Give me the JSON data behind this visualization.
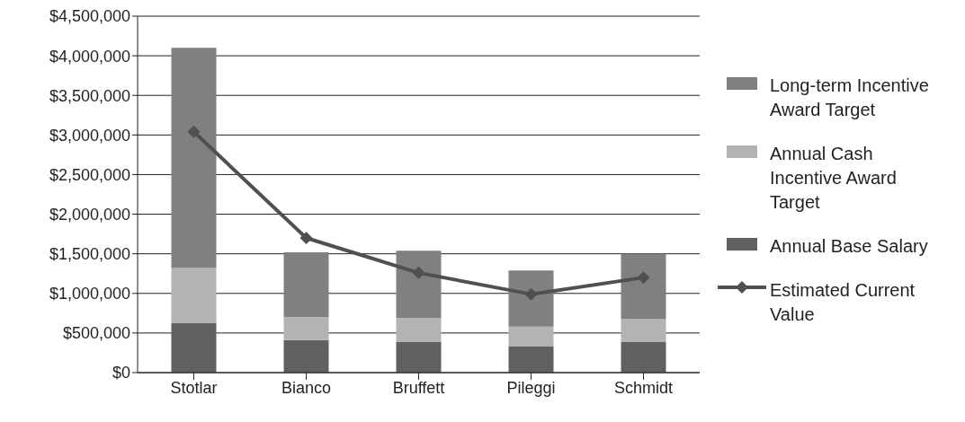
{
  "chart_data": {
    "type": "bar",
    "stacked": true,
    "categories": [
      "Stotlar",
      "Bianco",
      "Bruffett",
      "Pileggi",
      "Schmidt"
    ],
    "series": [
      {
        "name": "Annual Base Salary",
        "color": "#606060",
        "values": [
          630000,
          410000,
          390000,
          330000,
          390000
        ]
      },
      {
        "name": "Annual Cash Incentive Award Target",
        "color": "#b3b3b3",
        "values": [
          690000,
          290000,
          300000,
          250000,
          290000
        ]
      },
      {
        "name": "Long-term Incentive Award Target",
        "color": "#808080",
        "values": [
          2780000,
          820000,
          850000,
          710000,
          820000
        ]
      },
      {
        "name": "Estimated Current Value",
        "type": "line",
        "color": "#505050",
        "marker": "diamond",
        "values": [
          3040000,
          1700000,
          1260000,
          990000,
          1200000
        ]
      }
    ],
    "ylim": [
      0,
      4500000
    ],
    "yticks": [
      {
        "value": 0,
        "label": "$0"
      },
      {
        "value": 500000,
        "label": "$500,000"
      },
      {
        "value": 1000000,
        "label": "$1,000,000"
      },
      {
        "value": 1500000,
        "label": "$1,500,000"
      },
      {
        "value": 2000000,
        "label": "$2,000,000"
      },
      {
        "value": 2500000,
        "label": "$2,500,000"
      },
      {
        "value": 3000000,
        "label": "$3,000,000"
      },
      {
        "value": 3500000,
        "label": "$3,500,000"
      },
      {
        "value": 4000000,
        "label": "$4,000,000"
      },
      {
        "value": 4500000,
        "label": "$4,500,000"
      }
    ],
    "grid": "y",
    "legend": "right"
  }
}
